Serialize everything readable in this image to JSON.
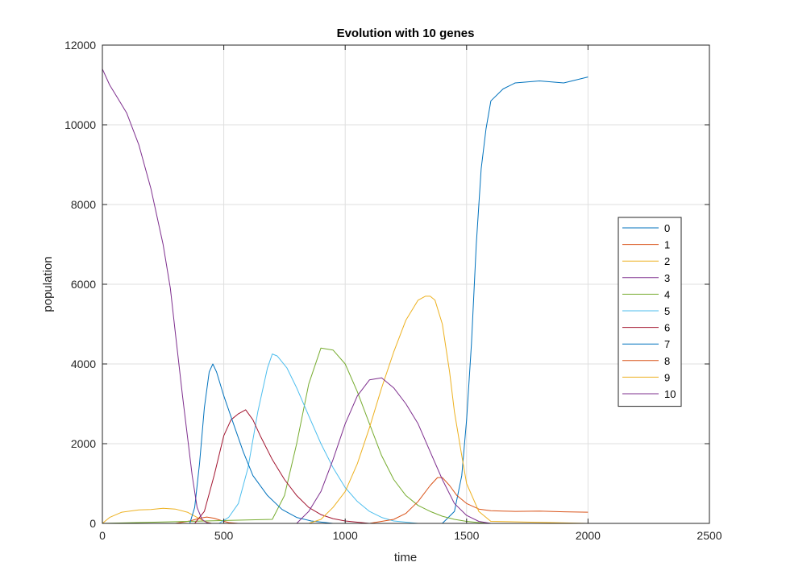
{
  "chart_data": {
    "type": "line",
    "title": "Evolution with 10 genes",
    "xlabel": "time",
    "ylabel": "population",
    "xlim": [
      0,
      2500
    ],
    "ylim": [
      0,
      12000
    ],
    "xticks": [
      0,
      500,
      1000,
      1500,
      2000,
      2500
    ],
    "yticks": [
      0,
      2000,
      4000,
      6000,
      8000,
      10000,
      12000
    ],
    "xtick_labels": [
      "0",
      "500",
      "1000",
      "1500",
      "2000",
      "2500"
    ],
    "ytick_labels": [
      "0",
      "2000",
      "4000",
      "6000",
      "8000",
      "10000",
      "12000"
    ],
    "grid": true,
    "legend_position": "right",
    "series": [
      {
        "name": "0",
        "color": "#0072BD",
        "x": [
          0,
          1400,
          1450,
          1480,
          1500,
          1520,
          1540,
          1560,
          1580,
          1600,
          1650,
          1700,
          1800,
          1900,
          2000
        ],
        "y": [
          0,
          0,
          300,
          1200,
          2600,
          4500,
          7000,
          8900,
          9900,
          10600,
          10900,
          11050,
          11100,
          11050,
          11200
        ]
      },
      {
        "name": "1",
        "color": "#D95319",
        "x": [
          0,
          300,
          360,
          400,
          430,
          460,
          490,
          520,
          560,
          2000
        ],
        "y": [
          0,
          0,
          60,
          130,
          160,
          130,
          70,
          20,
          0,
          0
        ]
      },
      {
        "name": "2",
        "color": "#EDB120",
        "x": [
          0,
          30,
          80,
          150,
          200,
          250,
          300,
          350,
          390,
          420,
          450,
          2000
        ],
        "y": [
          0,
          150,
          280,
          340,
          350,
          380,
          360,
          280,
          150,
          50,
          0,
          0
        ]
      },
      {
        "name": "3",
        "color": "#7E2F8E",
        "x": [
          0,
          300,
          350,
          400,
          420,
          440,
          460,
          2000
        ],
        "y": [
          0,
          0,
          0,
          0,
          0,
          0,
          0,
          0
        ]
      },
      {
        "name": "4",
        "color": "#77AC30",
        "x": [
          0,
          700,
          750,
          800,
          850,
          900,
          950,
          1000,
          1050,
          1100,
          1150,
          1200,
          1250,
          1300,
          1350,
          1400,
          1450,
          1500,
          1550,
          1600,
          2000
        ],
        "y": [
          0,
          100,
          700,
          2000,
          3500,
          4400,
          4350,
          4000,
          3300,
          2500,
          1700,
          1100,
          700,
          450,
          300,
          180,
          100,
          50,
          20,
          0,
          0
        ]
      },
      {
        "name": "5",
        "color": "#4DBEEE",
        "x": [
          0,
          480,
          520,
          560,
          600,
          640,
          680,
          700,
          720,
          760,
          800,
          850,
          900,
          950,
          1000,
          1050,
          1100,
          1150,
          1200,
          1300,
          2000
        ],
        "y": [
          0,
          0,
          150,
          500,
          1400,
          2800,
          3900,
          4250,
          4200,
          3900,
          3400,
          2700,
          2000,
          1400,
          900,
          550,
          300,
          150,
          60,
          0,
          0
        ]
      },
      {
        "name": "6",
        "color": "#A2142F",
        "x": [
          0,
          380,
          420,
          460,
          500,
          530,
          560,
          590,
          620,
          650,
          700,
          750,
          800,
          850,
          900,
          950,
          1000,
          1100,
          2000
        ],
        "y": [
          0,
          0,
          300,
          1200,
          2200,
          2600,
          2750,
          2850,
          2600,
          2200,
          1600,
          1100,
          700,
          400,
          220,
          120,
          60,
          0,
          0
        ]
      },
      {
        "name": "7",
        "color": "#0072BD",
        "x": [
          0,
          360,
          380,
          400,
          420,
          440,
          455,
          470,
          500,
          540,
          580,
          620,
          680,
          740,
          800,
          860,
          950,
          2000
        ],
        "y": [
          0,
          0,
          400,
          1500,
          2900,
          3800,
          4000,
          3800,
          3200,
          2500,
          1800,
          1200,
          700,
          350,
          150,
          60,
          0,
          0
        ]
      },
      {
        "name": "8",
        "color": "#D95319",
        "x": [
          0,
          1100,
          1200,
          1250,
          1300,
          1350,
          1380,
          1400,
          1430,
          1460,
          1500,
          1550,
          1600,
          1650,
          1700,
          1800,
          1900,
          2000
        ],
        "y": [
          0,
          0,
          100,
          250,
          550,
          950,
          1150,
          1150,
          950,
          700,
          500,
          360,
          320,
          310,
          300,
          310,
          290,
          280
        ]
      },
      {
        "name": "9",
        "color": "#EDB120",
        "x": [
          0,
          850,
          900,
          950,
          1000,
          1050,
          1100,
          1150,
          1200,
          1250,
          1300,
          1330,
          1350,
          1370,
          1400,
          1430,
          1450,
          1480,
          1500,
          1550,
          1600,
          2000
        ],
        "y": [
          0,
          0,
          100,
          400,
          800,
          1500,
          2400,
          3400,
          4300,
          5100,
          5600,
          5700,
          5700,
          5600,
          5000,
          3800,
          2800,
          1700,
          1000,
          300,
          50,
          0
        ]
      },
      {
        "name": "10",
        "color": "#7E2F8E",
        "x": [
          0,
          30,
          60,
          100,
          150,
          200,
          250,
          280,
          300,
          330,
          350,
          370,
          390,
          410,
          430,
          450,
          800,
          850,
          900,
          950,
          1000,
          1050,
          1100,
          1150,
          1200,
          1250,
          1300,
          1350,
          1400,
          1450,
          1500,
          1550,
          1600,
          2000
        ],
        "y": [
          11400,
          11000,
          10700,
          10300,
          9500,
          8400,
          7000,
          5900,
          4800,
          3200,
          2200,
          1200,
          400,
          100,
          20,
          0,
          0,
          300,
          800,
          1600,
          2500,
          3200,
          3600,
          3650,
          3400,
          3000,
          2500,
          1800,
          1100,
          500,
          200,
          50,
          0,
          0
        ]
      }
    ]
  }
}
